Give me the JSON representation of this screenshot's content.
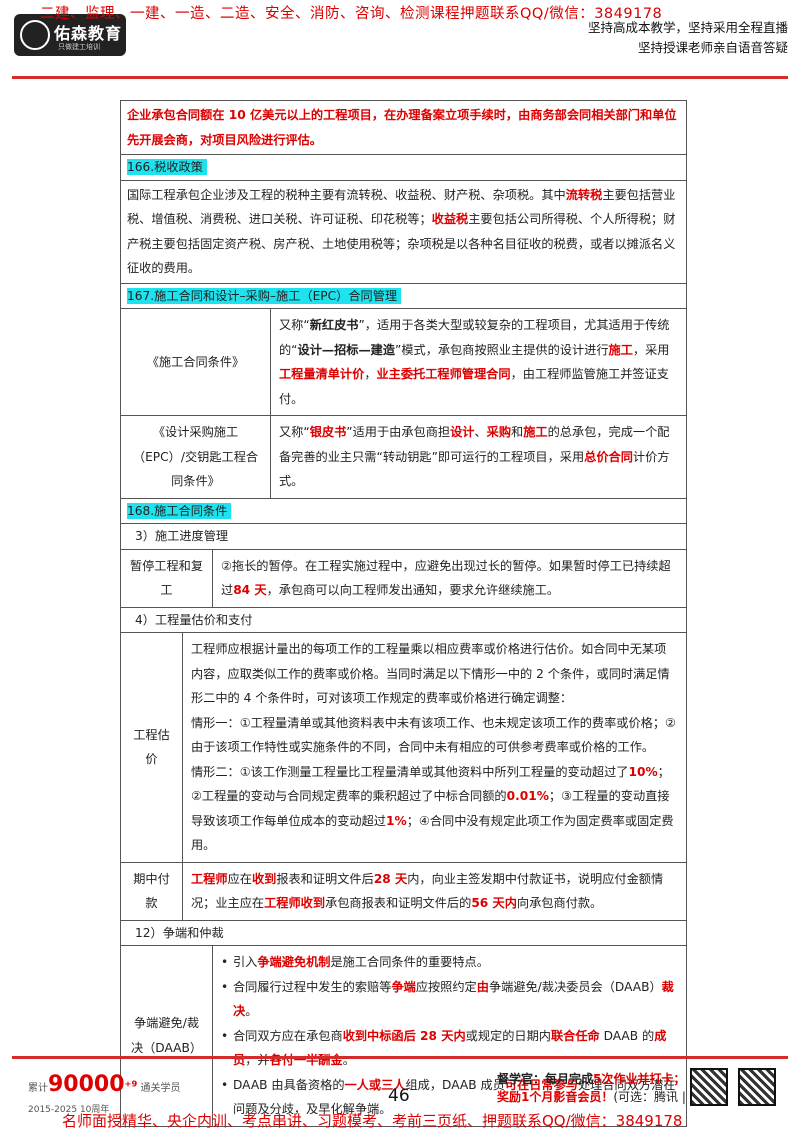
{
  "header": {
    "logo": "佑森教育",
    "logo_sub": "只做建工培训",
    "banner": "二建、监理、一建、一造、二造、安全、消防、咨询、检测课程押题联系QQ/微信：3849178",
    "slogans": [
      "坚持高成本教学，坚持采用全程直播",
      "坚持授课老师亲自语音答疑"
    ]
  },
  "content": [
    {
      "kind": "note",
      "runs": [
        {
          "text": "企业承包合同额在 10 亿美元以上的工程项目，在办理备案立项手续时，由商务部会同相关部门和单位先开展会商，对项目风险进行评估。",
          "style": "red"
        }
      ]
    },
    {
      "kind": "section",
      "text": "166.税收政策"
    },
    {
      "kind": "para",
      "runs": [
        {
          "text": "国际工程承包企业涉及工程的税种主要有流转税、收益税、财产税、杂项税。其中"
        },
        {
          "text": "流转税",
          "style": "red"
        },
        {
          "text": "主要包括营业税、增值税、消费税、进口关税、许可证税、印花税等；"
        },
        {
          "text": "收益税",
          "style": "red"
        },
        {
          "text": "主要包括公司所得税、个人所得税；财产税主要包括固定资产税、房产税、土地使用税等；杂项税是以各种名目征收的税费，或者以摊派名义征收的费用。"
        }
      ]
    },
    {
      "kind": "section",
      "text": "167.施工合同和设计–采购–施工（EPC）合同管理"
    },
    {
      "kind": "pair",
      "label": "《施工合同条件》",
      "paras": [
        [
          {
            "text": "又称“"
          },
          {
            "text": "新红皮书",
            "style": "bold"
          },
          {
            "text": "”，适用于各类大型或较复杂的工程项目，尤其适用于传统的“"
          },
          {
            "text": "设计—招标—建造",
            "style": "bold"
          },
          {
            "text": "”模式，承包商按照业主提供的设计进行"
          },
          {
            "text": "施工",
            "style": "red"
          },
          {
            "text": "，采用"
          },
          {
            "text": "工程量清单计价",
            "style": "red"
          },
          {
            "text": "，"
          },
          {
            "text": "业主委托工程师管理合同",
            "style": "red"
          },
          {
            "text": "，由工程师监管施工并签证支付。"
          }
        ]
      ]
    },
    {
      "kind": "pair",
      "label": "《设计采购施工（EPC）/交钥匙工程合同条件》",
      "paras": [
        [
          {
            "text": "又称“"
          },
          {
            "text": "银皮书",
            "style": "red"
          },
          {
            "text": "”适用于由承包商担"
          },
          {
            "text": "设计",
            "style": "red"
          },
          {
            "text": "、"
          },
          {
            "text": "采购",
            "style": "red"
          },
          {
            "text": "和"
          },
          {
            "text": "施工",
            "style": "red"
          },
          {
            "text": "的总承包，完成一个配备完善的业主只需“转动钥匙”即可运行的工程项目，采用"
          },
          {
            "text": "总价合同",
            "style": "red"
          },
          {
            "text": "计价方式。"
          }
        ]
      ]
    },
    {
      "kind": "section",
      "text": "168.施工合同条件"
    },
    {
      "kind": "sub",
      "text": "3）施工进度管理"
    },
    {
      "kind": "pair",
      "label": "暂停工程和复工",
      "paras": [
        [
          {
            "text": "②拖长的暂停。在工程实施过程中，应避免出现过长的暂停。如果暂时停工已持续超过"
          },
          {
            "text": "84 天",
            "style": "red"
          },
          {
            "text": "，承包商可以向工程师发出通知，要求允许继续施工。"
          }
        ]
      ]
    },
    {
      "kind": "sub",
      "text": "4）工程量估价和支付"
    },
    {
      "kind": "pair",
      "label": "工程估价",
      "paras": [
        [
          {
            "text": "工程师应根据计量出的每项工作的工程量乘以相应费率或价格进行估价。如合同中无某项内容，应取类似工作的费率或价格。当同时满足以下情形一中的 2 个条件，或同时满足情形二中的 4 个条件时，可对该项工作规定的费率或价格进行确定调整："
          }
        ],
        [
          {
            "text": "情形一：①工程量清单或其他资料表中未有该项工作、也未规定该项工作的费率或价格；②由于该项工作特性或实施条件的不同，合同中未有相应的可供参考费率或价格的工作。"
          }
        ],
        [
          {
            "text": "情形二：①该工作测量工程量比工程量清单或其他资料中所列工程量的变动超过了"
          },
          {
            "text": "10%",
            "style": "red"
          },
          {
            "text": "；②工程量的变动与合同规定费率的乘积超过了中标合同额的"
          },
          {
            "text": "0.01%",
            "style": "red"
          },
          {
            "text": "；③工程量的变动直接导致该项工作每单位成本的变动超过"
          },
          {
            "text": "1%",
            "style": "red"
          },
          {
            "text": "；④合同中没有规定此项工作为固定费率或固定费用。"
          }
        ]
      ]
    },
    {
      "kind": "pair",
      "label": "期中付款",
      "paras": [
        [
          {
            "text": "工程师",
            "style": "red"
          },
          {
            "text": "应在"
          },
          {
            "text": "收到",
            "style": "red"
          },
          {
            "text": "报表和证明文件后"
          },
          {
            "text": "28 天",
            "style": "red"
          },
          {
            "text": "内，向业主签发期中付款证书，说明应付金额情况；业主应在"
          },
          {
            "text": "工程师收到",
            "style": "red"
          },
          {
            "text": "承包商报表和证明文件后的"
          },
          {
            "text": "56 天内",
            "style": "red"
          },
          {
            "text": "向承包商付款。"
          }
        ]
      ]
    },
    {
      "kind": "sub",
      "text": "12）争端和仲裁"
    },
    {
      "kind": "bullets",
      "label": "争端避免/裁决（DAAB）",
      "paras": [
        [
          {
            "text": "引入"
          },
          {
            "text": "争端避免机制",
            "style": "red"
          },
          {
            "text": "是施工合同条件的重要特点。"
          }
        ],
        [
          {
            "text": "合同履行过程中发生的索赔等"
          },
          {
            "text": "争端",
            "style": "red"
          },
          {
            "text": "应按照约定"
          },
          {
            "text": "由",
            "style": "red"
          },
          {
            "text": "争端避免/裁决委员会（DAAB）"
          },
          {
            "text": "裁决",
            "style": "red"
          },
          {
            "text": "。"
          }
        ],
        [
          {
            "text": "合同双方应在承包商"
          },
          {
            "text": "收到中标函后 28 天内",
            "style": "red"
          },
          {
            "text": "或规定的日期内"
          },
          {
            "text": "联合任命",
            "style": "red"
          },
          {
            "text": " DAAB 的"
          },
          {
            "text": "成员",
            "style": "red"
          },
          {
            "text": "，并"
          },
          {
            "text": "各付一半酬金",
            "style": "red"
          },
          {
            "text": "。"
          }
        ],
        [
          {
            "text": "DAAB 由具备资格的"
          },
          {
            "text": "一人或三人",
            "style": "red"
          },
          {
            "text": "组成，DAAB 成员"
          },
          {
            "text": "可在日常参与",
            "style": "red"
          },
          {
            "text": "处理合同双方潜在问题及分歧，及早化解争端。"
          }
        ]
      ]
    }
  ],
  "footer": {
    "total_label": "累计",
    "total": "90000",
    "total_sup": "+9",
    "total_unit": "通关学员",
    "years": "2015-2025",
    "anniversary": "10周年",
    "page": "46",
    "supervisor": "督学官：每月完成",
    "supervisor_red": "5次作业并打卡；",
    "reward": "奖励1个月影音会员！",
    "reward_note": "(可选：腾讯 |",
    "banner": "名师面授精华、央企内训、考点串讲、习题模考、考前三页纸、押题联系QQ/微信：3849178"
  }
}
